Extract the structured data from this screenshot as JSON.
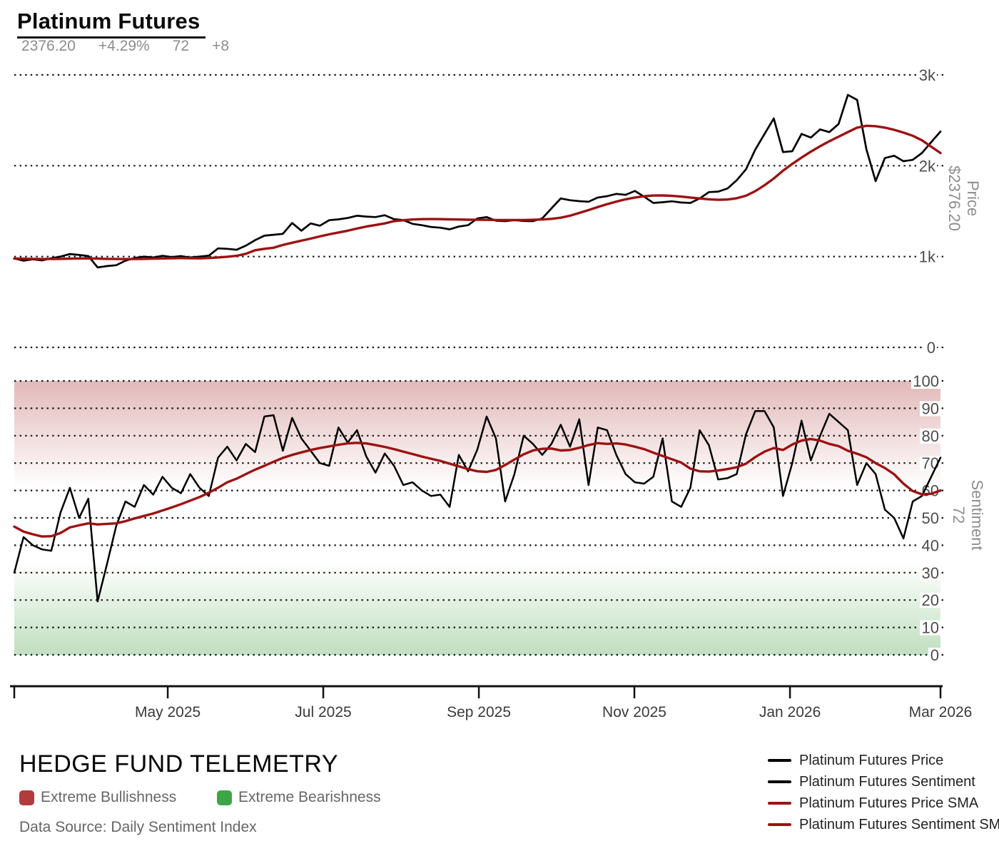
{
  "header": {
    "title": "Platinum Futures",
    "last_price": "2376.20",
    "change_percent": "+4.29%",
    "sentiment_value": "72",
    "sentiment_change": "+8"
  },
  "xaxis": {
    "labels": [
      "",
      "May 2025",
      "Jul 2025",
      "Sep 2025",
      "Nov 2025",
      "Jan 2026",
      "Mar 2026"
    ],
    "fractions": [
      0,
      0.1657,
      0.3336,
      0.5016,
      0.6695,
      0.8375,
      1
    ]
  },
  "chart_data": [
    {
      "panel": "price",
      "type": "line",
      "title": "Platinum Futures Price",
      "ylabel_lines": [
        "Price",
        "$2376.20"
      ],
      "ylim": [
        0,
        3000
      ],
      "grid": "dotted",
      "yticks": [
        {
          "value": 3000,
          "label": "3k"
        },
        {
          "value": 2000,
          "label": "2k"
        },
        {
          "value": 1000,
          "label": "1k"
        },
        {
          "value": 0,
          "label": "0"
        }
      ],
      "series": [
        {
          "name": "Platinum Futures Price",
          "color": "#000000",
          "stroke_width": 2.7,
          "values": [
            979,
            955,
            970,
            958,
            982,
            1000,
            1028,
            1018,
            1005,
            880,
            895,
            905,
            955,
            985,
            1000,
            990,
            1008,
            995,
            1005,
            990,
            1000,
            1010,
            1090,
            1085,
            1075,
            1120,
            1180,
            1230,
            1240,
            1250,
            1370,
            1285,
            1365,
            1340,
            1400,
            1410,
            1425,
            1450,
            1440,
            1435,
            1455,
            1412,
            1402,
            1360,
            1345,
            1326,
            1318,
            1300,
            1330,
            1345,
            1420,
            1435,
            1395,
            1390,
            1400,
            1392,
            1390,
            1420,
            1530,
            1640,
            1620,
            1610,
            1604,
            1650,
            1665,
            1690,
            1680,
            1722,
            1660,
            1590,
            1598,
            1608,
            1595,
            1590,
            1640,
            1710,
            1715,
            1750,
            1840,
            1960,
            2177,
            2350,
            2520,
            2150,
            2160,
            2350,
            2310,
            2400,
            2370,
            2460,
            2780,
            2724,
            2180,
            1830,
            2085,
            2110,
            2050,
            2065,
            2140,
            2260,
            2376.2
          ]
        },
        {
          "name": "Platinum Futures Price SMA",
          "color": "#9c1212",
          "stroke_width": 3.4,
          "values": [
            978,
            976,
            974,
            973,
            974,
            975,
            977,
            979,
            980,
            978,
            975,
            973,
            972,
            973,
            975,
            977,
            979,
            981,
            983,
            982,
            980,
            984,
            990,
            998,
            1008,
            1030,
            1070,
            1085,
            1097,
            1128,
            1152,
            1175,
            1198,
            1222,
            1245,
            1265,
            1285,
            1308,
            1330,
            1348,
            1365,
            1390,
            1400,
            1408,
            1412,
            1413,
            1412,
            1410,
            1408,
            1406,
            1405,
            1404,
            1403,
            1402,
            1402,
            1403,
            1405,
            1408,
            1415,
            1428,
            1450,
            1480,
            1512,
            1545,
            1576,
            1605,
            1630,
            1650,
            1664,
            1672,
            1673,
            1668,
            1660,
            1650,
            1640,
            1630,
            1625,
            1628,
            1642,
            1670,
            1720,
            1785,
            1860,
            1945,
            2020,
            2090,
            2155,
            2215,
            2270,
            2320,
            2370,
            2420,
            2440,
            2435,
            2420,
            2395,
            2365,
            2330,
            2280,
            2210,
            2140
          ]
        }
      ]
    },
    {
      "panel": "sentiment",
      "type": "line",
      "title": "Platinum Futures Sentiment",
      "ylabel_lines": [
        "Sentiment",
        "72"
      ],
      "ylim": [
        0,
        100
      ],
      "grid": "dotted",
      "yticks": [
        {
          "value": 100,
          "label": "100"
        },
        {
          "value": 90,
          "label": "90"
        },
        {
          "value": 80,
          "label": "80"
        },
        {
          "value": 70,
          "label": "70"
        },
        {
          "value": 60,
          "label": "60"
        },
        {
          "value": 50,
          "label": "50"
        },
        {
          "value": 40,
          "label": "40"
        },
        {
          "value": 30,
          "label": "30"
        },
        {
          "value": 20,
          "label": "20"
        },
        {
          "value": 10,
          "label": "10"
        },
        {
          "value": 0,
          "label": "0"
        }
      ],
      "bands": [
        {
          "label": "Extreme Bullishness",
          "color": "#aa3232",
          "solid_at": 100,
          "fade_to": 61,
          "max_alpha": 0.34
        },
        {
          "label": "Extreme Bearishness",
          "color": "#50a550",
          "solid_at": 0,
          "fade_to": 34,
          "max_alpha": 0.36
        }
      ],
      "series": [
        {
          "name": "Platinum Futures Sentiment",
          "color": "#000000",
          "stroke_width": 2.5,
          "values": [
            30,
            43,
            40,
            38.5,
            38,
            52,
            61,
            50,
            57,
            19.5,
            33,
            47,
            56,
            54,
            62,
            58.5,
            65,
            61,
            59,
            66,
            61,
            58,
            72,
            76,
            71,
            77,
            74,
            87,
            87.5,
            74.5,
            86.5,
            79,
            74.5,
            70,
            69,
            83,
            77.5,
            82,
            72.5,
            66.5,
            73.5,
            69,
            62,
            63,
            60,
            58,
            58.5,
            54,
            73,
            67,
            75,
            87,
            79,
            56,
            66,
            80,
            77,
            73,
            77,
            84,
            76,
            86,
            62,
            83,
            82,
            73,
            66,
            63,
            62.5,
            65,
            79,
            56,
            54,
            61,
            82,
            76.5,
            64,
            64.5,
            66,
            80.5,
            89,
            89,
            83,
            58,
            70,
            85.5,
            71,
            80,
            88,
            85,
            82,
            62,
            70,
            66,
            53,
            50,
            42.5,
            56,
            58,
            65,
            72
          ]
        },
        {
          "name": "Platinum Futures Sentiment SMA",
          "color": "#9c1212",
          "stroke_width": 3.4,
          "values": [
            46.8,
            45,
            44,
            43.2,
            43.3,
            44.5,
            46.5,
            47.3,
            48,
            47.6,
            47.8,
            48,
            48.8,
            49.8,
            50.7,
            51.6,
            52.7,
            53.8,
            55,
            56.3,
            57.6,
            59.2,
            61,
            63,
            64.3,
            66,
            67.6,
            69,
            70.5,
            71.9,
            73,
            73.9,
            74.8,
            75.5,
            76.1,
            76.7,
            77.2,
            77.4,
            77.2,
            76.6,
            75.9,
            75.1,
            74.2,
            73.3,
            72.4,
            71.6,
            70.8,
            69.8,
            68.8,
            67.8,
            67,
            66.8,
            67.5,
            69.3,
            71.3,
            73.2,
            74.6,
            75.2,
            75.3,
            74.6,
            74.8,
            75.6,
            76.6,
            77.3,
            77,
            77.2,
            76.8,
            76,
            75.1,
            73.8,
            72.6,
            71.4,
            70.2,
            68,
            67,
            66.9,
            67.3,
            67.8,
            68.5,
            69.8,
            72.2,
            74.2,
            75.5,
            74.8,
            76.8,
            78.2,
            78.8,
            78.2,
            77,
            76.2,
            74.5,
            73.4,
            72.1,
            70,
            68.2,
            65.9,
            62.5,
            59.8,
            58.6,
            58.8,
            60
          ]
        }
      ]
    }
  ],
  "legend": [
    {
      "label": "Platinum Futures Price",
      "color": "#000000"
    },
    {
      "label": "Platinum Futures Sentiment",
      "color": "#000000"
    },
    {
      "label": "Platinum Futures Price SMA",
      "color": "#9c1212"
    },
    {
      "label": "Platinum Futures Sentiment SMA",
      "color": "#9c1212"
    }
  ],
  "footer": {
    "brand": "HEDGE FUND TELEMETRY",
    "bullish_label": "Extreme Bullishness",
    "bullish_color": "#b03c3c",
    "bearish_label": "Extreme Bearishness",
    "bearish_color": "#3ca647",
    "source": "Data Source: Daily Sentiment Index"
  }
}
